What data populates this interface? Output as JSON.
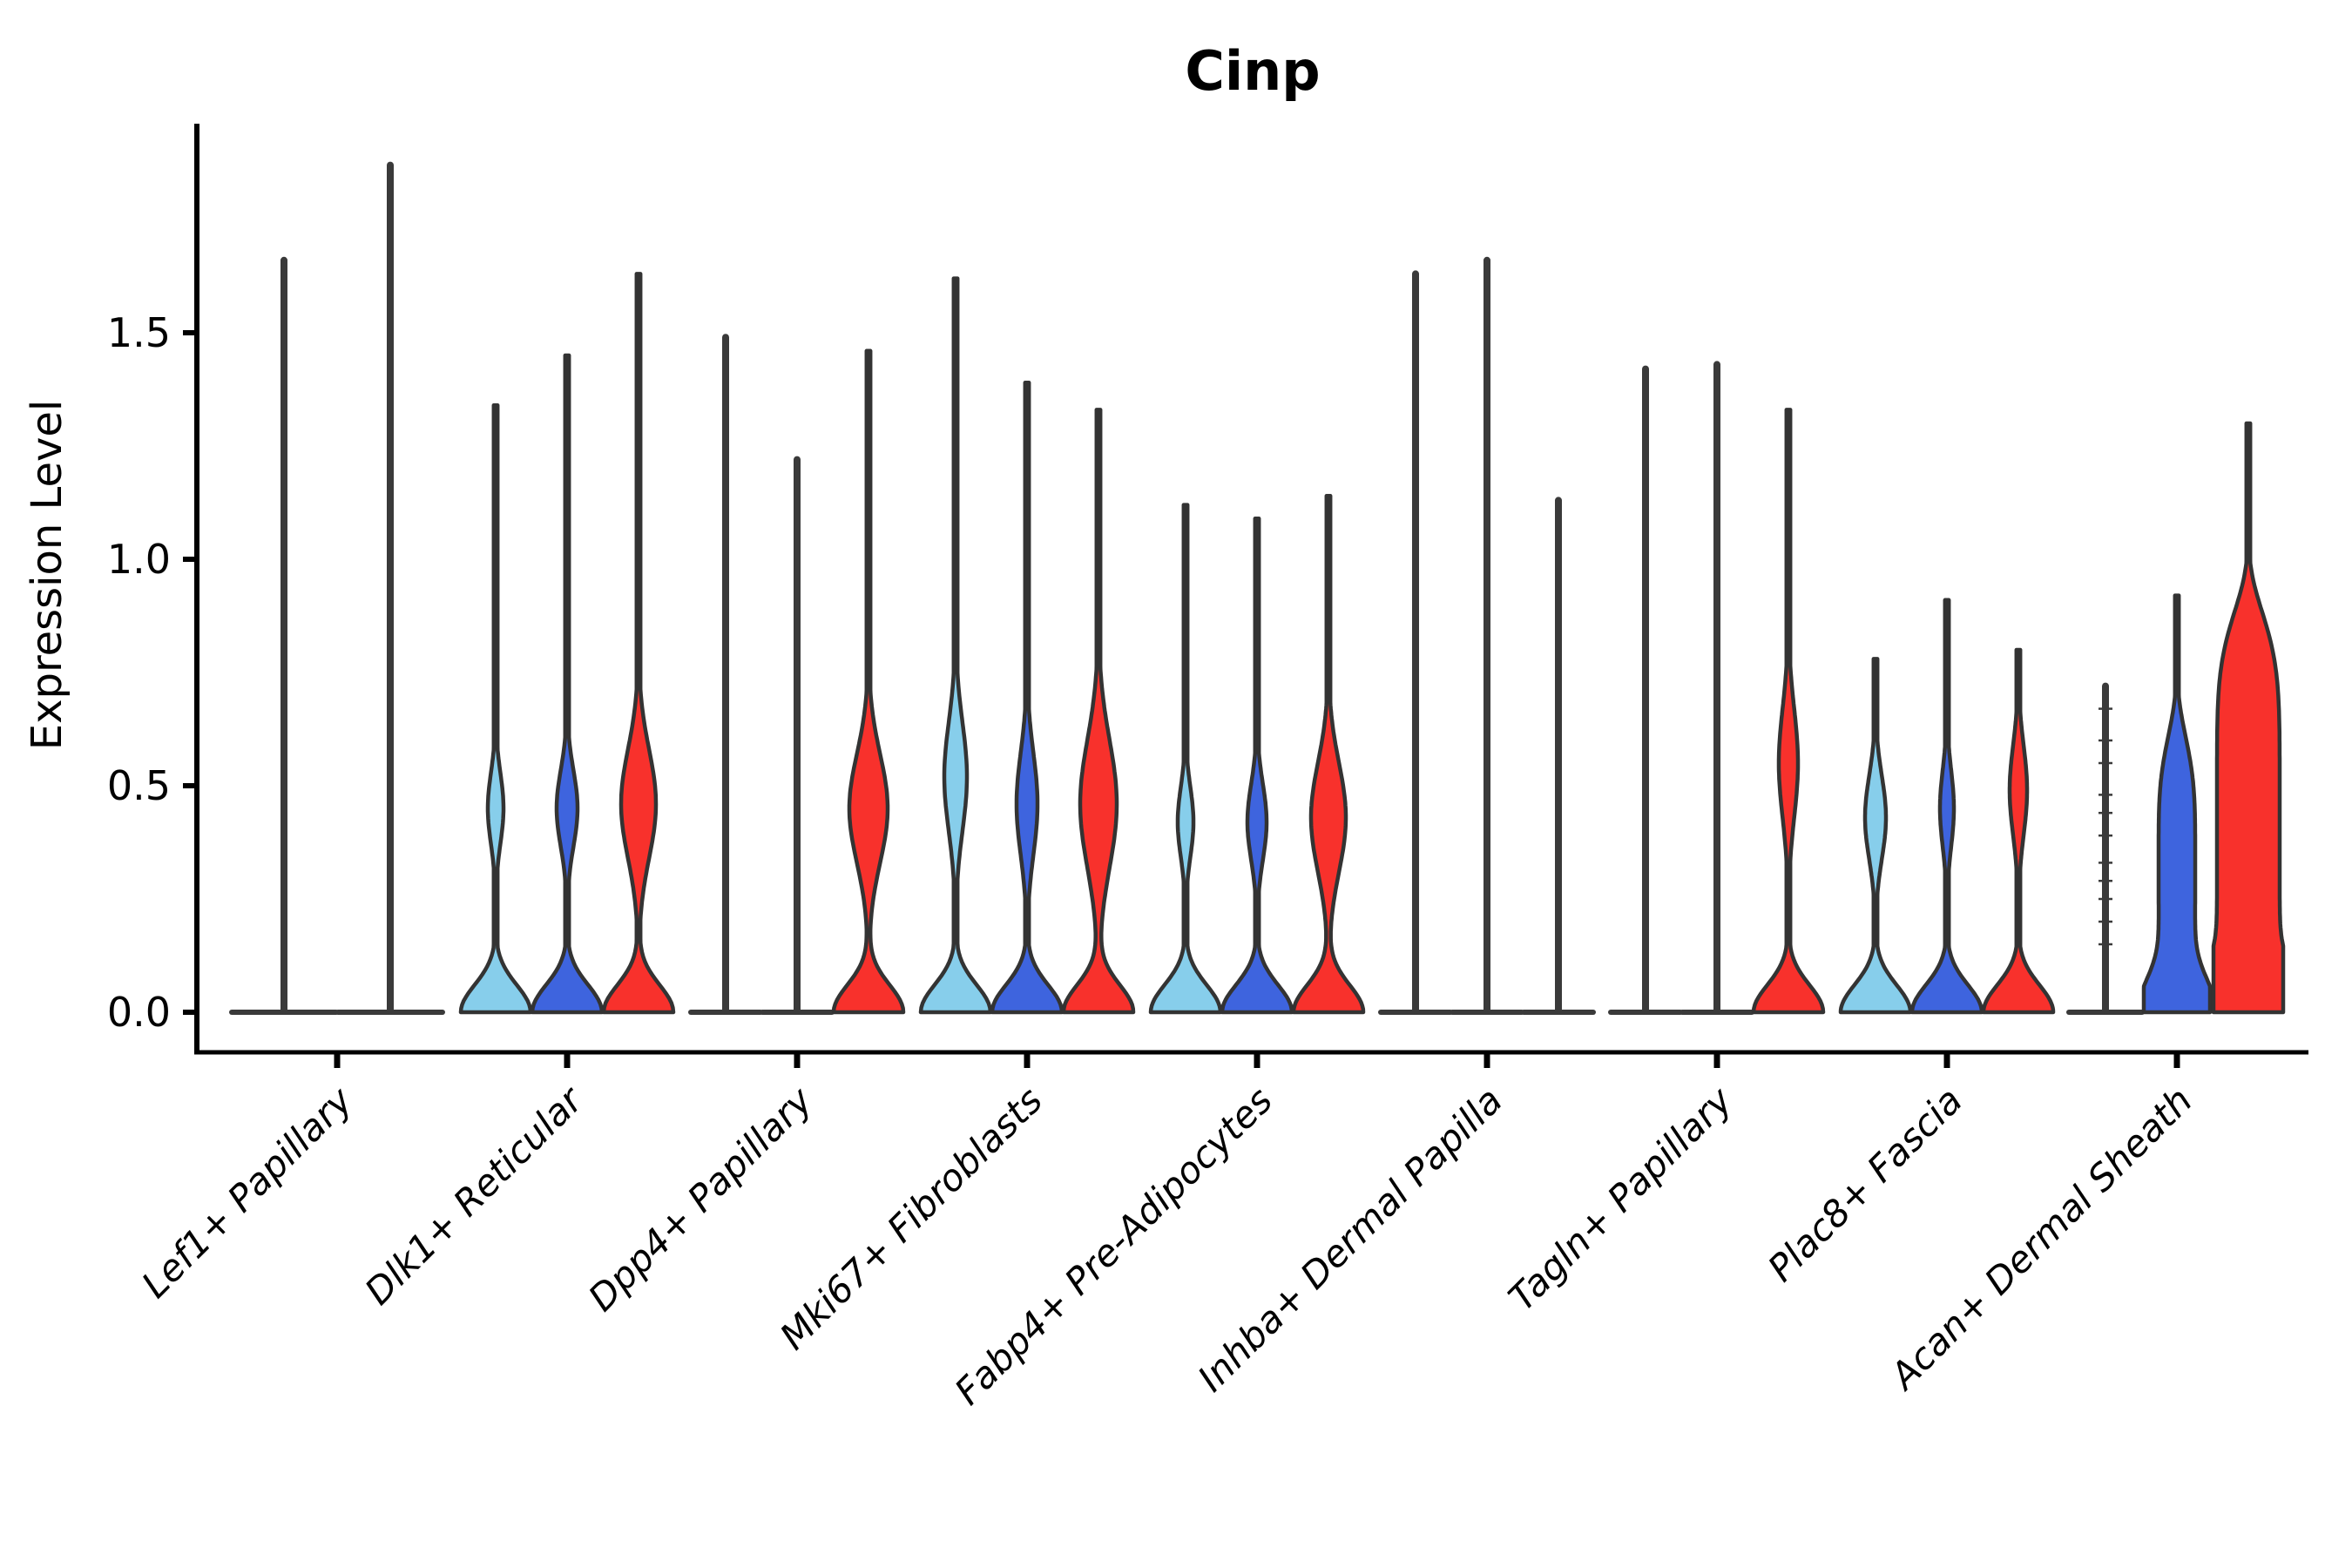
{
  "chart_data": {
    "type": "violin",
    "title": "Cinp",
    "ylabel": "Expression Level",
    "xlabel": "",
    "yticks": [
      "0.0",
      "0.5",
      "1.0",
      "1.5"
    ],
    "ytick_values": [
      0.0,
      0.5,
      1.0,
      1.5
    ],
    "ylim": [
      -0.09,
      1.96
    ],
    "grid": false,
    "legend": "none",
    "x_label_rotation_deg": 45,
    "x_label_style": "italic",
    "colors": {
      "lightblue": "#87CEEB",
      "blue": "#3E64DE",
      "red": "#F8312C",
      "dark": "#3a3a3a",
      "edge": "#333333",
      "axis": "#000000"
    },
    "categories": [
      "Lef1+ Papillary",
      "Dlk1+ Reticular",
      "Dpp4+ Papillary",
      "Mki67+ Fibroblasts",
      "Fabp4+ Pre-Adipocytes",
      "Inhba+ Dermal Papilla",
      "Tagln+ Papillary",
      "Plac8+ Fascia",
      "Acan+ Dermal Sheath"
    ],
    "groups": [
      {
        "category": "Lef1+ Papillary",
        "violins": [
          {
            "color": "dark",
            "flat": true,
            "offset": -61,
            "half_width": 60,
            "max": 1.66
          },
          {
            "color": "dark",
            "flat": true,
            "offset": 61,
            "half_width": 60,
            "max": 1.87
          }
        ]
      },
      {
        "category": "Dlk1+ Reticular",
        "violins": [
          {
            "color": "lightblue",
            "offset": -82,
            "half_width": 40,
            "max": 1.34,
            "bulge": {
              "center": 0.45,
              "sigma": 0.11,
              "hw": 9
            }
          },
          {
            "color": "blue",
            "offset": 0,
            "half_width": 40,
            "max": 1.45,
            "bulge": {
              "center": 0.45,
              "sigma": 0.12,
              "hw": 12
            }
          },
          {
            "color": "red",
            "offset": 82,
            "half_width": 40,
            "max": 1.63,
            "bulge": {
              "center": 0.46,
              "sigma": 0.17,
              "hw": 20
            }
          }
        ]
      },
      {
        "category": "Dpp4+ Papillary",
        "violins": [
          {
            "color": "dark",
            "flat": true,
            "offset": -82,
            "half_width": 40,
            "max": 1.49
          },
          {
            "color": "dark",
            "flat": true,
            "offset": 0,
            "half_width": 40,
            "max": 1.22
          },
          {
            "color": "red",
            "offset": 82,
            "half_width": 40,
            "max": 1.46,
            "bulge": {
              "center": 0.45,
              "sigma": 0.17,
              "hw": 22
            }
          }
        ]
      },
      {
        "category": "Mki67+ Fibroblasts",
        "violins": [
          {
            "color": "lightblue",
            "offset": -82,
            "half_width": 40,
            "max": 1.62,
            "bulge": {
              "center": 0.52,
              "sigma": 0.17,
              "hw": 13
            }
          },
          {
            "color": "blue",
            "offset": 0,
            "half_width": 40,
            "max": 1.39,
            "bulge": {
              "center": 0.46,
              "sigma": 0.16,
              "hw": 12
            }
          },
          {
            "color": "red",
            "offset": 82,
            "half_width": 40,
            "max": 1.33,
            "bulge": {
              "center": 0.46,
              "sigma": 0.2,
              "hw": 21
            }
          }
        ]
      },
      {
        "category": "Fabp4+ Pre-Adipocytes",
        "violins": [
          {
            "color": "lightblue",
            "offset": -82,
            "half_width": 40,
            "max": 1.12,
            "bulge": {
              "center": 0.42,
              "sigma": 0.11,
              "hw": 9
            }
          },
          {
            "color": "blue",
            "offset": 0,
            "half_width": 40,
            "max": 1.09,
            "bulge": {
              "center": 0.42,
              "sigma": 0.12,
              "hw": 11
            }
          },
          {
            "color": "red",
            "offset": 82,
            "half_width": 40,
            "max": 1.14,
            "bulge": {
              "center": 0.43,
              "sigma": 0.17,
              "hw": 20
            }
          }
        ]
      },
      {
        "category": "Inhba+ Dermal Papilla",
        "violins": [
          {
            "color": "dark",
            "flat": true,
            "offset": -82,
            "half_width": 40,
            "max": 1.63
          },
          {
            "color": "dark",
            "flat": true,
            "offset": 0,
            "half_width": 40,
            "max": 1.66
          },
          {
            "color": "dark",
            "flat": true,
            "offset": 82,
            "half_width": 40,
            "max": 1.13
          }
        ]
      },
      {
        "category": "Tagln+ Papillary",
        "violins": [
          {
            "color": "dark",
            "flat": true,
            "offset": -82,
            "half_width": 40,
            "max": 1.42
          },
          {
            "color": "dark",
            "flat": true,
            "offset": 0,
            "half_width": 40,
            "max": 1.43
          },
          {
            "color": "red",
            "offset": 82,
            "half_width": 40,
            "max": 1.33,
            "bulge": {
              "center": 0.55,
              "sigma": 0.17,
              "hw": 11
            }
          }
        ]
      },
      {
        "category": "Plac8+ Fascia",
        "violins": [
          {
            "color": "lightblue",
            "offset": -82,
            "half_width": 40,
            "max": 0.78,
            "bulge": {
              "center": 0.43,
              "sigma": 0.13,
              "hw": 12
            }
          },
          {
            "color": "blue",
            "offset": 0,
            "half_width": 40,
            "max": 0.91,
            "bulge": {
              "center": 0.45,
              "sigma": 0.12,
              "hw": 8
            }
          },
          {
            "color": "red",
            "offset": 82,
            "half_width": 40,
            "max": 0.8,
            "bulge": {
              "center": 0.49,
              "sigma": 0.14,
              "hw": 10
            }
          }
        ]
      },
      {
        "category": "Acan+ Dermal Sheath",
        "violins": [
          {
            "color": "dark",
            "flat": true,
            "offset": -82,
            "half_width": 42,
            "max": 0.72,
            "dashes": [
              0.67,
              0.6,
              0.55,
              0.48,
              0.44,
              0.39,
              0.33,
              0.29,
              0.25,
              0.2,
              0.15
            ]
          },
          {
            "color": "blue",
            "offset": 0,
            "half_width": 38,
            "max": 0.92,
            "base_sigma": 0.1,
            "bulge": {
              "center": 0.33,
              "sigma": 0.3,
              "hw": 21,
              "p": 4
            }
          },
          {
            "color": "red",
            "offset": 82,
            "half_width": 40,
            "max": 1.3,
            "base_sigma": 0.1,
            "bulge": {
              "center": 0.4,
              "sigma": 0.5,
              "hw": 36,
              "p": 6
            }
          }
        ]
      }
    ]
  }
}
